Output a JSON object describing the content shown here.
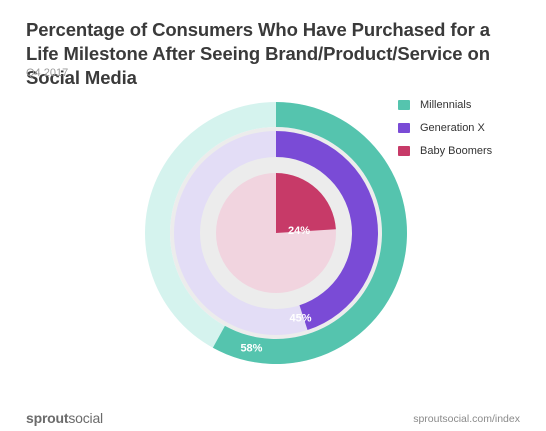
{
  "chart_data": {
    "type": "pie",
    "title": "Percentage of Consumers Who Have Purchased for a Life Milestone After Seeing Brand/Product/Service on Social Media",
    "subtitle": "Q4 2017",
    "series": [
      {
        "name": "Millennials",
        "value": 58,
        "label": "58%",
        "color": "#55c4ae",
        "track_color": "#d5f3ee"
      },
      {
        "name": "Generation X",
        "value": 45,
        "label": "45%",
        "color": "#7a4bd6",
        "track_color": "#e3ddf6"
      },
      {
        "name": "Baby Boomers",
        "value": 24,
        "label": "24%",
        "color": "#c73a68",
        "track_color": "#f1d4df"
      }
    ],
    "legend_position": "top-right",
    "unit": "%"
  },
  "footer": {
    "brand_bold": "sprout",
    "brand_light": "social",
    "url": "sproutsocial.com/index"
  }
}
